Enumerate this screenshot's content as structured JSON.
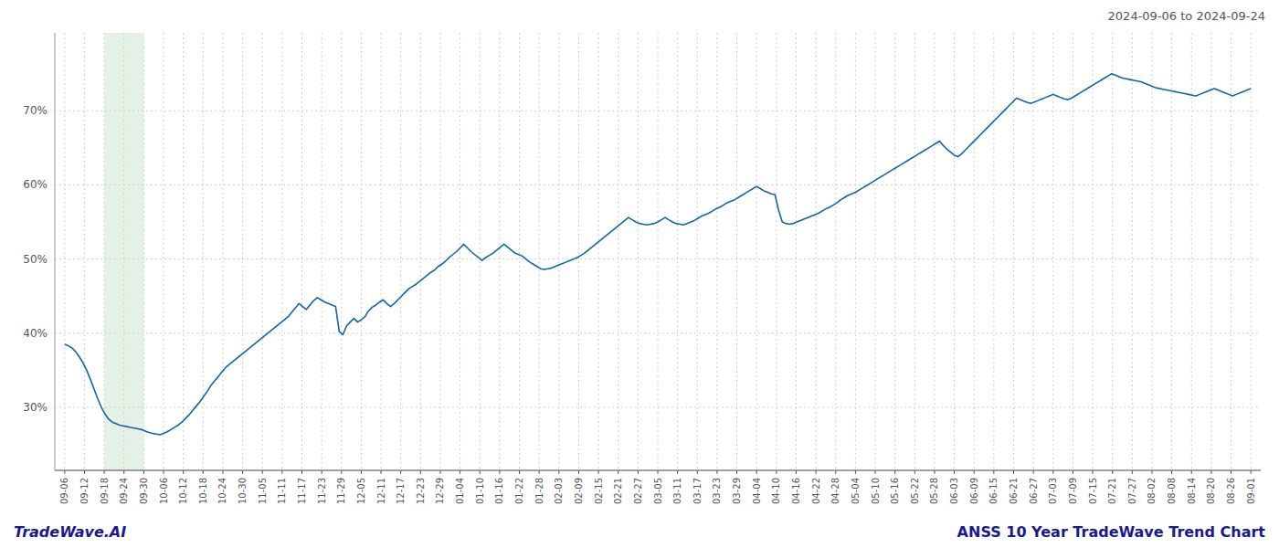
{
  "chart_data": {
    "type": "line",
    "title": "ANSS 10 Year TradeWave Trend Chart",
    "subtitle": "2024-09-06 to 2024-09-24",
    "annotations": [
      "TradeWave.AI"
    ],
    "color": "#1465a8",
    "grid": true,
    "highlight": {
      "from": 12,
      "to": 24,
      "color": "#c8e6c9"
    },
    "xlim": [
      -3,
      363
    ],
    "xticks": [
      {
        "value": 0,
        "label": "09-06"
      },
      {
        "value": 6,
        "label": "09-12"
      },
      {
        "value": 12,
        "label": "09-18"
      },
      {
        "value": 18,
        "label": "09-24"
      },
      {
        "value": 24,
        "label": "09-30"
      },
      {
        "value": 30,
        "label": "10-06"
      },
      {
        "value": 36,
        "label": "10-12"
      },
      {
        "value": 42,
        "label": "10-18"
      },
      {
        "value": 48,
        "label": "10-24"
      },
      {
        "value": 54,
        "label": "10-30"
      },
      {
        "value": 60,
        "label": "11-05"
      },
      {
        "value": 66,
        "label": "11-11"
      },
      {
        "value": 72,
        "label": "11-17"
      },
      {
        "value": 78,
        "label": "11-23"
      },
      {
        "value": 84,
        "label": "11-29"
      },
      {
        "value": 90,
        "label": "12-05"
      },
      {
        "value": 96,
        "label": "12-11"
      },
      {
        "value": 102,
        "label": "12-17"
      },
      {
        "value": 108,
        "label": "12-23"
      },
      {
        "value": 114,
        "label": "12-29"
      },
      {
        "value": 120,
        "label": "01-04"
      },
      {
        "value": 126,
        "label": "01-10"
      },
      {
        "value": 132,
        "label": "01-16"
      },
      {
        "value": 138,
        "label": "01-22"
      },
      {
        "value": 144,
        "label": "01-28"
      },
      {
        "value": 150,
        "label": "02-03"
      },
      {
        "value": 156,
        "label": "02-09"
      },
      {
        "value": 162,
        "label": "02-15"
      },
      {
        "value": 168,
        "label": "02-21"
      },
      {
        "value": 174,
        "label": "02-27"
      },
      {
        "value": 180,
        "label": "03-05"
      },
      {
        "value": 186,
        "label": "03-11"
      },
      {
        "value": 192,
        "label": "03-17"
      },
      {
        "value": 198,
        "label": "03-23"
      },
      {
        "value": 204,
        "label": "03-29"
      },
      {
        "value": 210,
        "label": "04-04"
      },
      {
        "value": 216,
        "label": "04-10"
      },
      {
        "value": 222,
        "label": "04-16"
      },
      {
        "value": 228,
        "label": "04-22"
      },
      {
        "value": 234,
        "label": "04-28"
      },
      {
        "value": 240,
        "label": "05-04"
      },
      {
        "value": 246,
        "label": "05-10"
      },
      {
        "value": 252,
        "label": "05-16"
      },
      {
        "value": 258,
        "label": "05-22"
      },
      {
        "value": 264,
        "label": "05-28"
      },
      {
        "value": 270,
        "label": "06-03"
      },
      {
        "value": 276,
        "label": "06-09"
      },
      {
        "value": 282,
        "label": "06-15"
      },
      {
        "value": 288,
        "label": "06-21"
      },
      {
        "value": 294,
        "label": "06-27"
      },
      {
        "value": 300,
        "label": "07-03"
      },
      {
        "value": 306,
        "label": "07-09"
      },
      {
        "value": 312,
        "label": "07-15"
      },
      {
        "value": 318,
        "label": "07-21"
      },
      {
        "value": 324,
        "label": "07-27"
      },
      {
        "value": 330,
        "label": "08-02"
      },
      {
        "value": 336,
        "label": "08-08"
      },
      {
        "value": 342,
        "label": "08-14"
      },
      {
        "value": 348,
        "label": "08-20"
      },
      {
        "value": 354,
        "label": "08-26"
      },
      {
        "value": 360,
        "label": "09-01"
      }
    ],
    "ylim": [
      0.215,
      0.805
    ],
    "yticks": [
      {
        "value": 0.3,
        "label": "30%"
      },
      {
        "value": 0.4,
        "label": "40%"
      },
      {
        "value": 0.5,
        "label": "50%"
      },
      {
        "value": 0.6,
        "label": "60%"
      },
      {
        "value": 0.7,
        "label": "70%"
      }
    ],
    "values": [
      0.385,
      0.383,
      0.38,
      0.375,
      0.368,
      0.36,
      0.35,
      0.338,
      0.325,
      0.312,
      0.3,
      0.291,
      0.284,
      0.28,
      0.278,
      0.276,
      0.275,
      0.274,
      0.273,
      0.272,
      0.271,
      0.27,
      0.268,
      0.266,
      0.265,
      0.264,
      0.263,
      0.265,
      0.267,
      0.27,
      0.273,
      0.276,
      0.28,
      0.285,
      0.29,
      0.296,
      0.302,
      0.308,
      0.315,
      0.322,
      0.33,
      0.336,
      0.342,
      0.348,
      0.354,
      0.358,
      0.362,
      0.366,
      0.37,
      0.374,
      0.378,
      0.382,
      0.386,
      0.39,
      0.394,
      0.398,
      0.402,
      0.406,
      0.41,
      0.414,
      0.418,
      0.422,
      0.428,
      0.434,
      0.44,
      0.436,
      0.432,
      0.438,
      0.444,
      0.448,
      0.445,
      0.442,
      0.44,
      0.438,
      0.436,
      0.402,
      0.398,
      0.41,
      0.415,
      0.42,
      0.415,
      0.418,
      0.422,
      0.43,
      0.435,
      0.438,
      0.442,
      0.445,
      0.44,
      0.436,
      0.44,
      0.445,
      0.45,
      0.455,
      0.46,
      0.463,
      0.466,
      0.47,
      0.474,
      0.478,
      0.482,
      0.485,
      0.49,
      0.493,
      0.497,
      0.502,
      0.506,
      0.51,
      0.515,
      0.52,
      0.515,
      0.51,
      0.506,
      0.502,
      0.498,
      0.502,
      0.505,
      0.508,
      0.512,
      0.516,
      0.52,
      0.516,
      0.512,
      0.508,
      0.506,
      0.504,
      0.5,
      0.496,
      0.493,
      0.49,
      0.487,
      0.486,
      0.487,
      0.488,
      0.49,
      0.492,
      0.494,
      0.496,
      0.498,
      0.5,
      0.502,
      0.505,
      0.508,
      0.512,
      0.516,
      0.52,
      0.524,
      0.528,
      0.532,
      0.536,
      0.54,
      0.544,
      0.548,
      0.552,
      0.556,
      0.553,
      0.55,
      0.548,
      0.547,
      0.546,
      0.547,
      0.548,
      0.55,
      0.553,
      0.556,
      0.553,
      0.55,
      0.548,
      0.547,
      0.546,
      0.548,
      0.55,
      0.552,
      0.555,
      0.558,
      0.56,
      0.562,
      0.565,
      0.568,
      0.57,
      0.573,
      0.576,
      0.578,
      0.58,
      0.583,
      0.586,
      0.589,
      0.592,
      0.595,
      0.598,
      0.595,
      0.592,
      0.59,
      0.588,
      0.587,
      0.566,
      0.55,
      0.548,
      0.547,
      0.548,
      0.55,
      0.552,
      0.554,
      0.556,
      0.558,
      0.56,
      0.562,
      0.565,
      0.568,
      0.57,
      0.573,
      0.576,
      0.58,
      0.583,
      0.586,
      0.588,
      0.59,
      0.593,
      0.596,
      0.599,
      0.602,
      0.605,
      0.608,
      0.611,
      0.614,
      0.617,
      0.62,
      0.623,
      0.626,
      0.629,
      0.632,
      0.635,
      0.638,
      0.641,
      0.644,
      0.647,
      0.65,
      0.653,
      0.656,
      0.659,
      0.653,
      0.648,
      0.644,
      0.64,
      0.638,
      0.642,
      0.647,
      0.652,
      0.657,
      0.662,
      0.667,
      0.672,
      0.677,
      0.682,
      0.687,
      0.692,
      0.697,
      0.702,
      0.707,
      0.712,
      0.717,
      0.715,
      0.713,
      0.711,
      0.71,
      0.712,
      0.714,
      0.716,
      0.718,
      0.72,
      0.722,
      0.72,
      0.718,
      0.716,
      0.715,
      0.717,
      0.72,
      0.723,
      0.726,
      0.729,
      0.732,
      0.735,
      0.738,
      0.741,
      0.744,
      0.747,
      0.75,
      0.748,
      0.746,
      0.744,
      0.743,
      0.742,
      0.741,
      0.74,
      0.739,
      0.737,
      0.735,
      0.733,
      0.731,
      0.73,
      0.729,
      0.728,
      0.727,
      0.726,
      0.725,
      0.724,
      0.723,
      0.722,
      0.721,
      0.72,
      0.722,
      0.724,
      0.726,
      0.728,
      0.73,
      0.728,
      0.726,
      0.724,
      0.722,
      0.72,
      0.722,
      0.724,
      0.726,
      0.728,
      0.73
    ]
  }
}
